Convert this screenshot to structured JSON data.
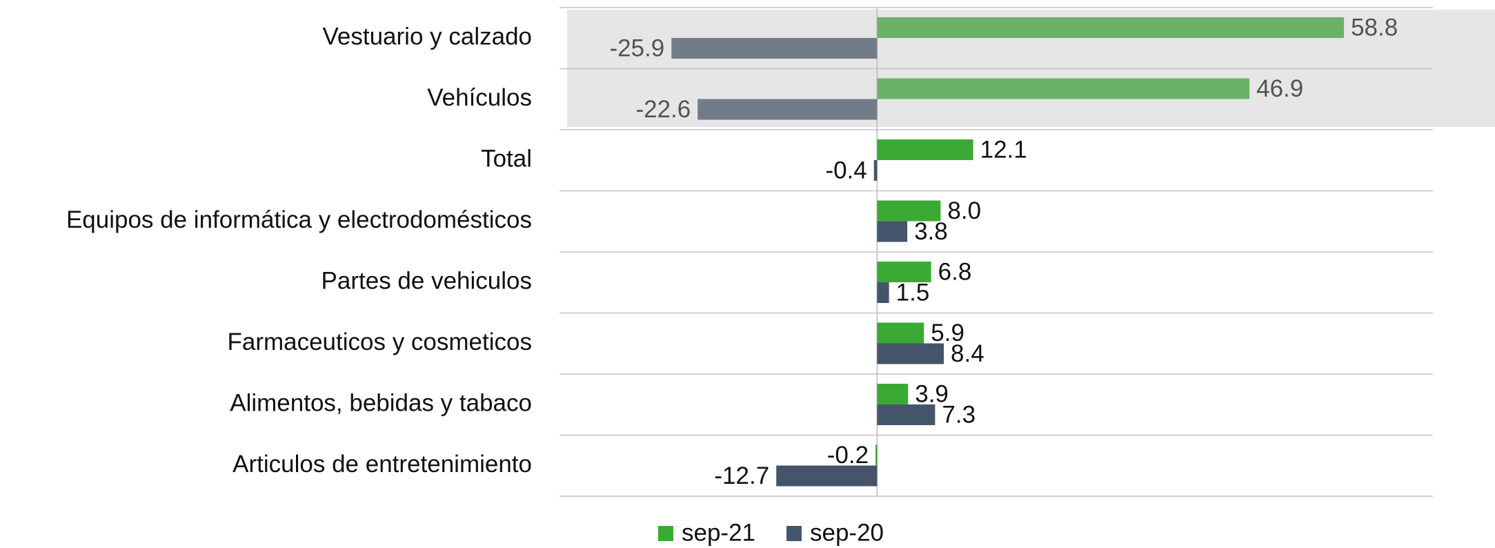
{
  "chart_data": {
    "type": "hbar",
    "categories": [
      "Vestuario y calzado",
      "Vehículos",
      "Total",
      "Equipos de informática y electrodomésticos",
      "Partes de vehiculos",
      "Farmaceuticos y cosmeticos",
      "Alimentos, bebidas y tabaco",
      "Articulos de entretenimiento"
    ],
    "series": [
      {
        "name": "sep-21",
        "color": "#3aaa35",
        "values": [
          58.8,
          46.9,
          12.1,
          8.0,
          6.8,
          5.9,
          3.9,
          -0.2
        ],
        "value_labels": [
          "58.8",
          "46.9",
          "12.1",
          "8.0",
          "6.8",
          "5.9",
          "3.9",
          "-0.2"
        ]
      },
      {
        "name": "sep-20",
        "color": "#44546a",
        "values": [
          -25.9,
          -22.6,
          -0.4,
          3.8,
          1.5,
          8.4,
          7.3,
          -12.7
        ],
        "value_labels": [
          "-25.9",
          "-22.6",
          "-0.4",
          "3.8",
          "1.5",
          "8.4",
          "7.3",
          "-12.7"
        ]
      }
    ],
    "xlim": [
      -40,
      70
    ],
    "legend": "bottom"
  }
}
